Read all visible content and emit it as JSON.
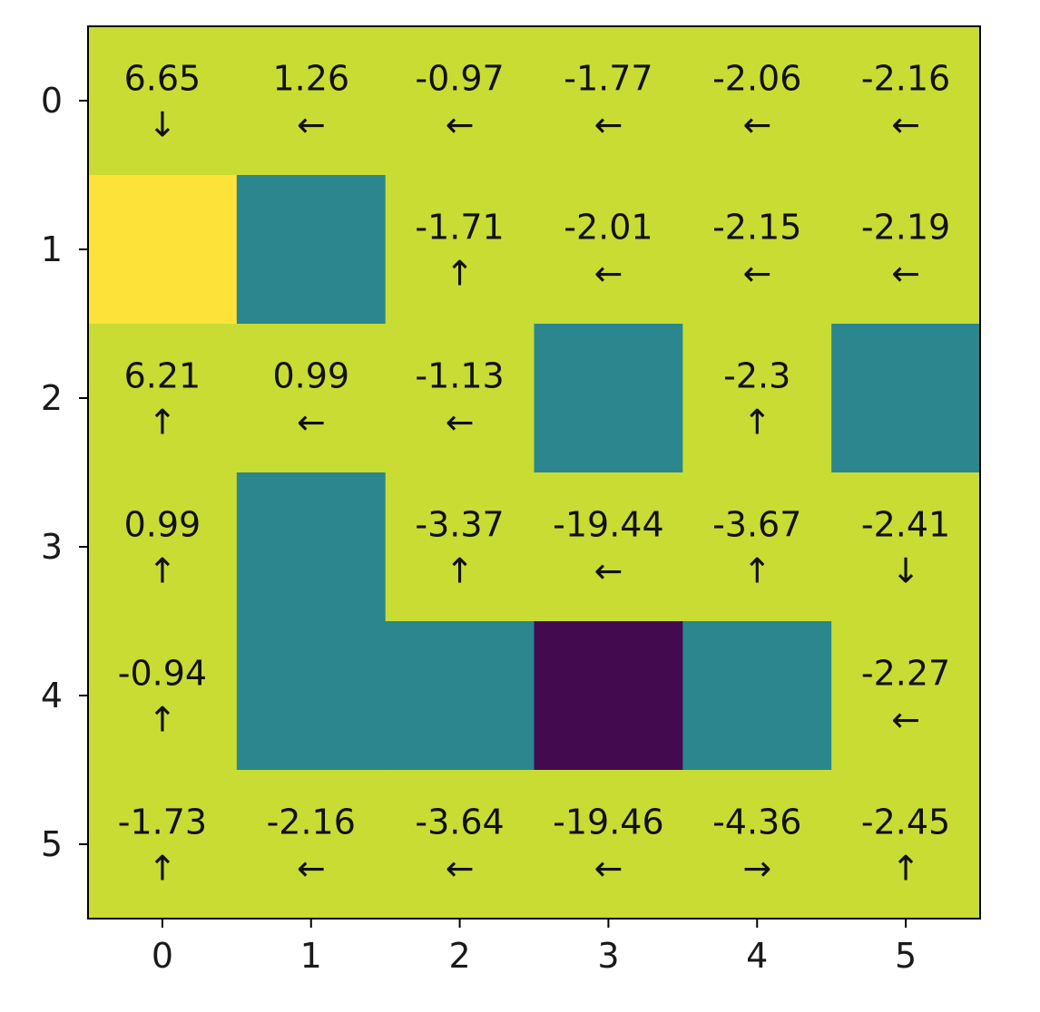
{
  "chart_data": {
    "type": "heatmap",
    "rows": [
      0,
      1,
      2,
      3,
      4,
      5
    ],
    "cols": [
      0,
      1,
      2,
      3,
      4,
      5
    ],
    "x_ticks": [
      "0",
      "1",
      "2",
      "3",
      "4",
      "5"
    ],
    "y_ticks": [
      "0",
      "1",
      "2",
      "3",
      "4",
      "5"
    ],
    "cell_types": [
      [
        "open",
        "open",
        "open",
        "open",
        "open",
        "open"
      ],
      [
        "goal",
        "wall",
        "open",
        "open",
        "open",
        "open"
      ],
      [
        "open",
        "open",
        "open",
        "wall",
        "open",
        "wall"
      ],
      [
        "open",
        "wall",
        "open",
        "open",
        "open",
        "open"
      ],
      [
        "open",
        "wall",
        "wall",
        "trap",
        "wall",
        "open"
      ],
      [
        "open",
        "open",
        "open",
        "open",
        "open",
        "open"
      ]
    ],
    "colors": {
      "open": "#c8dc34",
      "goal": "#fde23a",
      "wall": "#2b868d",
      "trap": "#440a4f"
    },
    "values": [
      [
        "6.65",
        "1.26",
        "-0.97",
        "-1.77",
        "-2.06",
        "-2.16"
      ],
      [
        "",
        "",
        "-1.71",
        "-2.01",
        "-2.15",
        "-2.19"
      ],
      [
        "6.21",
        "0.99",
        "-1.13",
        "",
        "-2.3",
        ""
      ],
      [
        "0.99",
        "",
        "-3.37",
        "-19.44",
        "-3.67",
        "-2.41"
      ],
      [
        "-0.94",
        "",
        "",
        "",
        "",
        "-2.27"
      ],
      [
        "-1.73",
        "-2.16",
        "-3.64",
        "-19.46",
        "-4.36",
        "-2.45"
      ]
    ],
    "arrows": [
      [
        "↓",
        "←",
        "←",
        "←",
        "←",
        "←"
      ],
      [
        "",
        "",
        "↑",
        "←",
        "←",
        "←"
      ],
      [
        "↑",
        "←",
        "←",
        "",
        "↑",
        ""
      ],
      [
        "↑",
        "",
        "↑",
        "←",
        "↑",
        "↓"
      ],
      [
        "↑",
        "",
        "",
        "",
        "",
        "←"
      ],
      [
        "↑",
        "←",
        "←",
        "←",
        "→",
        "↑"
      ]
    ]
  }
}
